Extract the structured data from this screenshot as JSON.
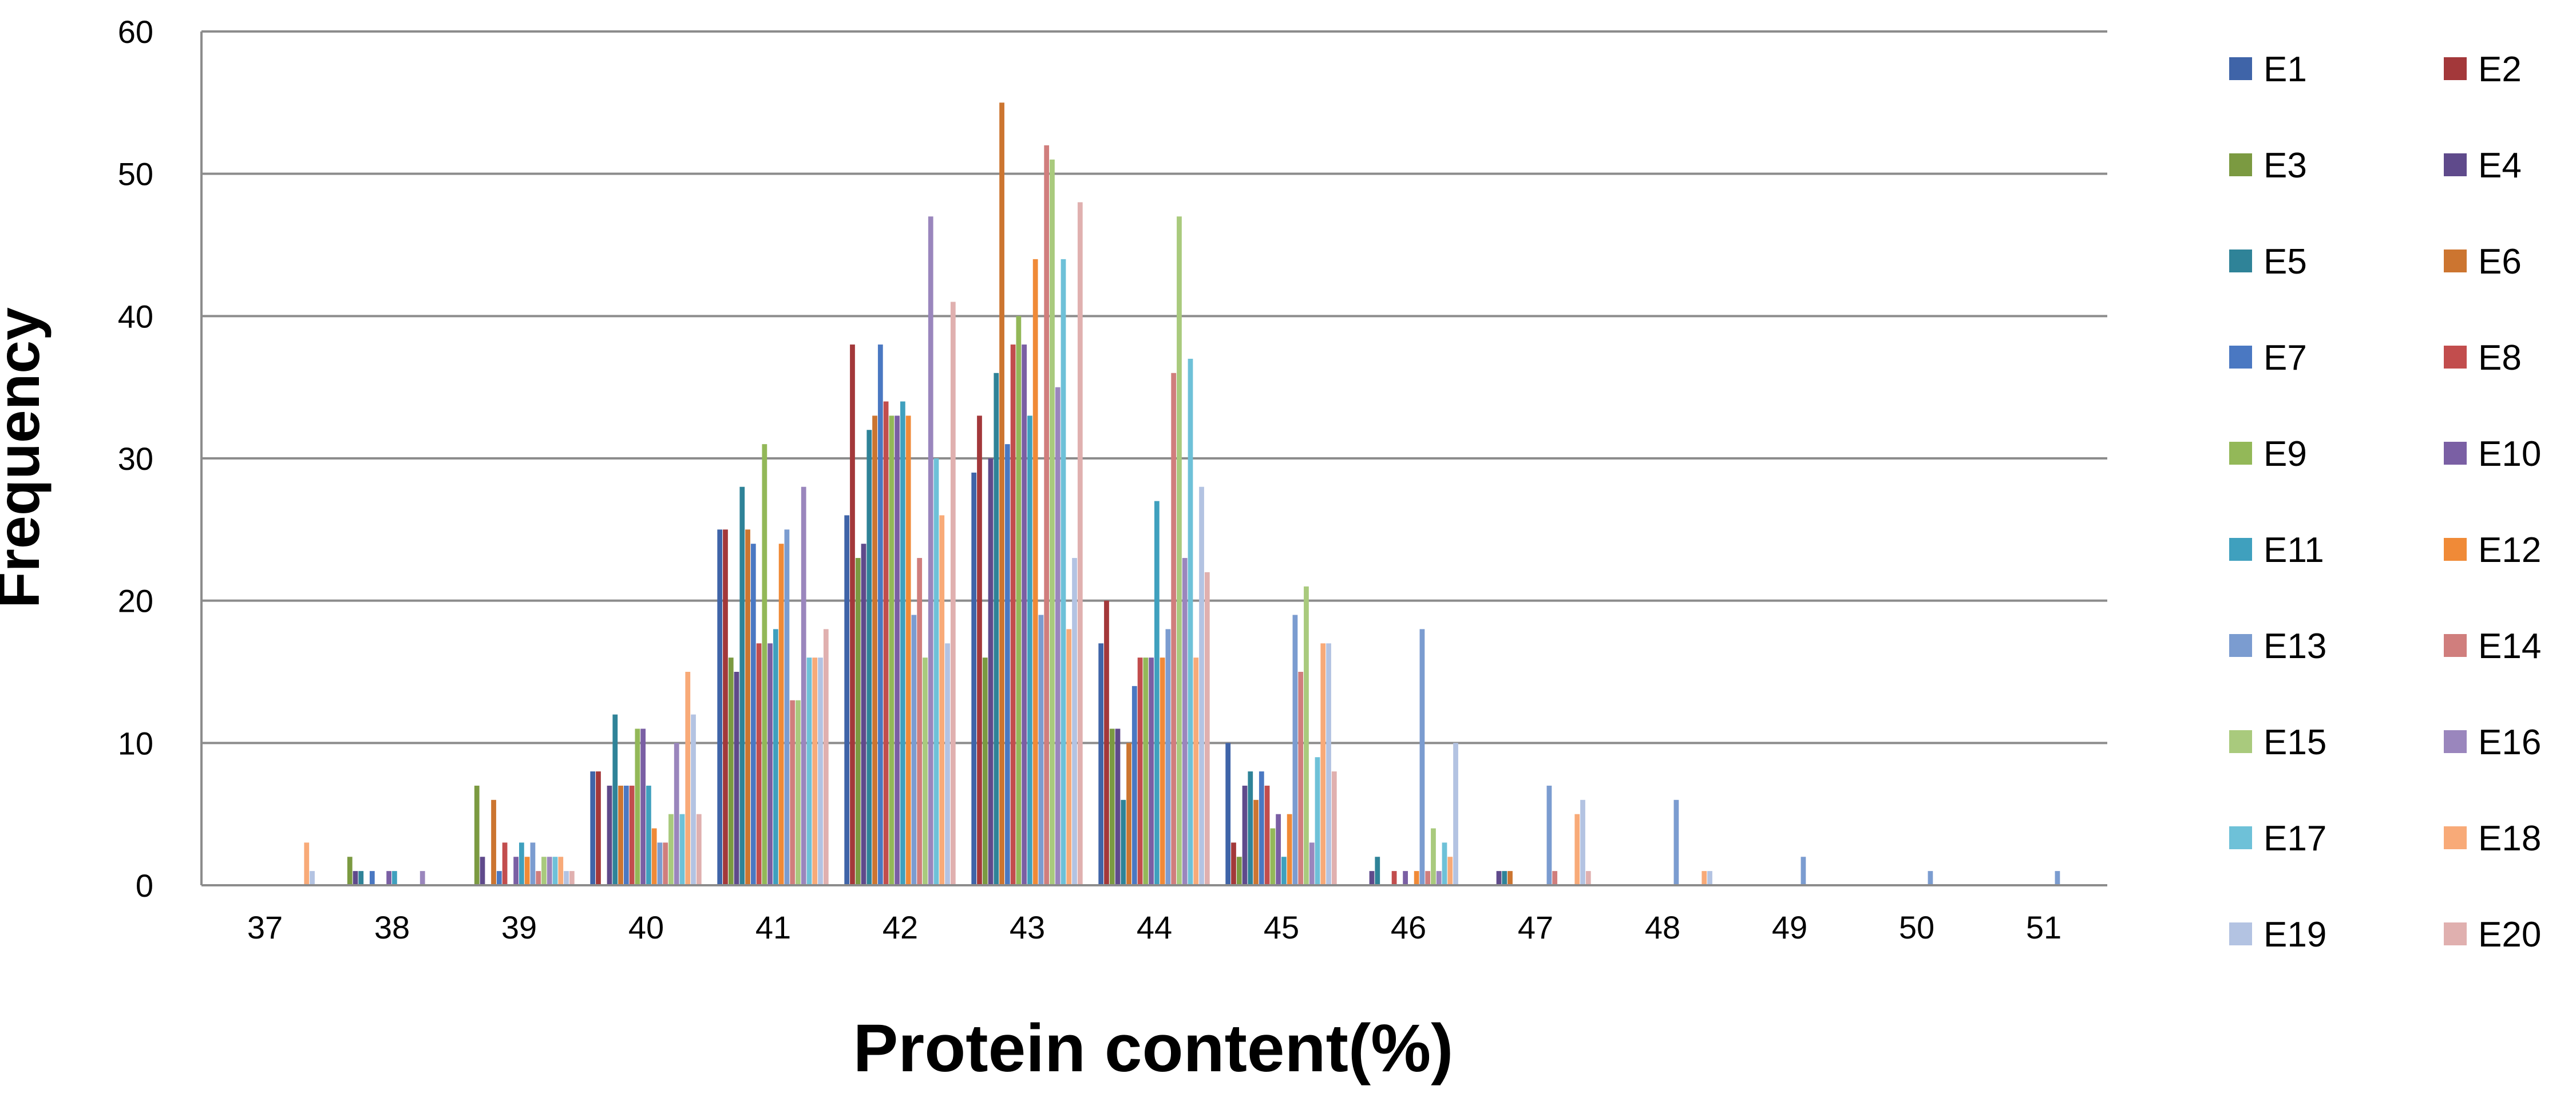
{
  "chart_data": {
    "type": "bar",
    "title": "",
    "xlabel": "Protein content(%)",
    "ylabel": "Frequency",
    "ylim": [
      0,
      60
    ],
    "yticks": [
      "0",
      "10",
      "20",
      "30",
      "40",
      "50",
      "60"
    ],
    "categories": [
      "37",
      "38",
      "39",
      "40",
      "41",
      "42",
      "43",
      "44",
      "45",
      "46",
      "47",
      "48",
      "49",
      "50",
      "51"
    ],
    "grid": "horizontal",
    "legend_position": "right",
    "series": [
      {
        "name": "E1",
        "color": "#3F64A8",
        "values": [
          0,
          0,
          0,
          8,
          25,
          26,
          29,
          17,
          10,
          0,
          0,
          0,
          0,
          0,
          0
        ]
      },
      {
        "name": "E2",
        "color": "#A3383A",
        "values": [
          0,
          0,
          0,
          8,
          25,
          38,
          33,
          20,
          3,
          0,
          0,
          0,
          0,
          0,
          0
        ]
      },
      {
        "name": "E3",
        "color": "#7B9A41",
        "values": [
          0,
          2,
          7,
          0,
          16,
          23,
          16,
          11,
          2,
          0,
          0,
          0,
          0,
          0,
          0
        ]
      },
      {
        "name": "E4",
        "color": "#5F4A8B",
        "values": [
          0,
          1,
          2,
          7,
          15,
          24,
          30,
          11,
          7,
          1,
          1,
          0,
          0,
          0,
          0
        ]
      },
      {
        "name": "E5",
        "color": "#2F8398",
        "values": [
          0,
          1,
          0,
          12,
          28,
          32,
          36,
          6,
          8,
          2,
          1,
          0,
          0,
          0,
          0
        ]
      },
      {
        "name": "E6",
        "color": "#CC7530",
        "values": [
          0,
          0,
          6,
          7,
          25,
          33,
          55,
          10,
          6,
          0,
          1,
          0,
          0,
          0,
          0
        ]
      },
      {
        "name": "E7",
        "color": "#4A78C2",
        "values": [
          0,
          1,
          1,
          7,
          24,
          38,
          31,
          14,
          8,
          0,
          0,
          0,
          0,
          0,
          0
        ]
      },
      {
        "name": "E8",
        "color": "#C24D4D",
        "values": [
          0,
          0,
          3,
          7,
          17,
          34,
          38,
          16,
          7,
          1,
          0,
          0,
          0,
          0,
          0
        ]
      },
      {
        "name": "E9",
        "color": "#93B858",
        "values": [
          0,
          0,
          0,
          11,
          31,
          33,
          40,
          16,
          4,
          0,
          0,
          0,
          0,
          0,
          0
        ]
      },
      {
        "name": "E10",
        "color": "#7A5FA4",
        "values": [
          0,
          1,
          2,
          11,
          17,
          33,
          38,
          16,
          5,
          1,
          0,
          0,
          0,
          0,
          0
        ]
      },
      {
        "name": "E11",
        "color": "#3FA0BE",
        "values": [
          0,
          1,
          3,
          7,
          18,
          34,
          33,
          27,
          2,
          0,
          0,
          0,
          0,
          0,
          0
        ]
      },
      {
        "name": "E12",
        "color": "#F08A37",
        "values": [
          0,
          0,
          2,
          4,
          24,
          33,
          44,
          16,
          5,
          1,
          0,
          0,
          0,
          0,
          0
        ]
      },
      {
        "name": "E13",
        "color": "#7B9CD0",
        "values": [
          0,
          0,
          3,
          3,
          25,
          19,
          19,
          18,
          19,
          18,
          7,
          6,
          2,
          1,
          1
        ]
      },
      {
        "name": "E14",
        "color": "#D07E7D",
        "values": [
          0,
          0,
          1,
          3,
          13,
          23,
          52,
          36,
          15,
          1,
          1,
          0,
          0,
          0,
          0
        ]
      },
      {
        "name": "E15",
        "color": "#A9CA7D",
        "values": [
          0,
          0,
          2,
          5,
          13,
          16,
          51,
          47,
          21,
          4,
          0,
          0,
          0,
          0,
          0
        ]
      },
      {
        "name": "E16",
        "color": "#9A86BD",
        "values": [
          0,
          1,
          2,
          10,
          28,
          47,
          35,
          23,
          3,
          1,
          0,
          0,
          0,
          0,
          0
        ]
      },
      {
        "name": "E17",
        "color": "#6EC1D8",
        "values": [
          0,
          0,
          2,
          5,
          16,
          30,
          44,
          37,
          9,
          3,
          0,
          0,
          0,
          0,
          0
        ]
      },
      {
        "name": "E18",
        "color": "#F8AA78",
        "values": [
          3,
          0,
          2,
          15,
          16,
          26,
          18,
          16,
          17,
          2,
          5,
          1,
          0,
          0,
          0
        ]
      },
      {
        "name": "E19",
        "color": "#B3C3E2",
        "values": [
          1,
          0,
          1,
          12,
          16,
          17,
          23,
          28,
          17,
          10,
          6,
          1,
          0,
          0,
          0
        ]
      },
      {
        "name": "E20",
        "color": "#E0B0AF",
        "values": [
          0,
          0,
          1,
          5,
          18,
          41,
          48,
          22,
          8,
          0,
          1,
          0,
          0,
          0,
          0
        ]
      }
    ]
  }
}
